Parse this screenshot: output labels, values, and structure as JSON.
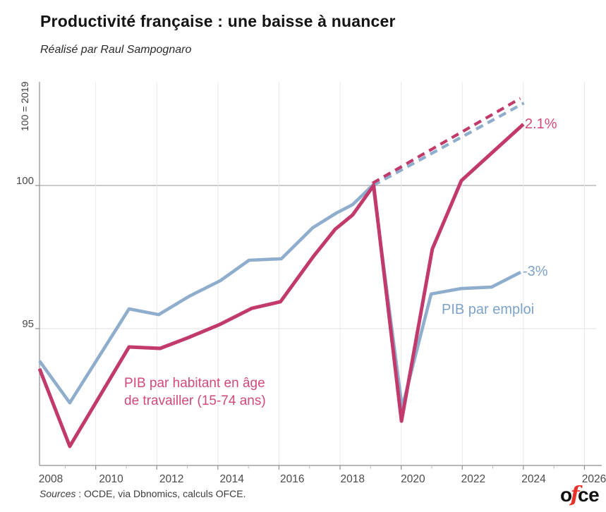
{
  "header": {
    "title": "Productivité française : une baisse à nuancer",
    "subtitle": "Réalisé par Raul Sampognaro"
  },
  "footer": {
    "sources_label": "Sources",
    "sources_text": " : OCDE, via Dbnomics, calculs OFCE.",
    "logo_o": "o",
    "logo_f": "f",
    "logo_ce": "ce"
  },
  "chart_data": {
    "type": "line",
    "title": "Productivité française : une baisse à nuancer",
    "y_axis_title": "100 = 2019",
    "x_ticks": [
      2008,
      2010,
      2012,
      2014,
      2016,
      2018,
      2020,
      2022,
      2024,
      2026
    ],
    "x_minor_ticks": [
      2009,
      2011,
      2013,
      2015,
      2017,
      2019,
      2021,
      2023,
      2025
    ],
    "y_ticks": [
      95,
      100
    ],
    "xlim": [
      2008.16,
      2026.4
    ],
    "ylim": [
      90.3,
      103.6
    ],
    "grid": true,
    "colors": {
      "blue": "#8fadcc",
      "pink": "#c23a6b",
      "blue_label": "#7ea3c8",
      "pink_label": "#d2497b"
    },
    "series": [
      {
        "name": "PIB par emploi",
        "color": "#8fadcc",
        "style": "solid",
        "end_label": "-3%",
        "points": [
          [
            2008.16,
            93.87
          ],
          [
            2009.15,
            92.41
          ],
          [
            2011.09,
            95.69
          ],
          [
            2012.06,
            95.49
          ],
          [
            2013.06,
            96.13
          ],
          [
            2014.07,
            96.67
          ],
          [
            2015.02,
            97.39
          ],
          [
            2016.08,
            97.44
          ],
          [
            2017.1,
            98.52
          ],
          [
            2017.88,
            99.04
          ],
          [
            2018.41,
            99.33
          ],
          [
            2019.08,
            100.02
          ],
          [
            2020.03,
            92.24
          ],
          [
            2020.98,
            96.21
          ],
          [
            2021.95,
            96.4
          ],
          [
            2022.96,
            96.45
          ],
          [
            2023.91,
            96.97
          ]
        ]
      },
      {
        "name": "PIB par habitant en âge de travailler (15-74 ans)",
        "color": "#c23a6b",
        "style": "solid",
        "end_label": "2.1%",
        "points": [
          [
            2008.16,
            93.6
          ],
          [
            2009.15,
            90.89
          ],
          [
            2011.09,
            94.36
          ],
          [
            2012.11,
            94.31
          ],
          [
            2013.06,
            94.7
          ],
          [
            2014.07,
            95.15
          ],
          [
            2015.11,
            95.71
          ],
          [
            2016.05,
            95.94
          ],
          [
            2017.14,
            97.54
          ],
          [
            2017.84,
            98.47
          ],
          [
            2018.41,
            98.97
          ],
          [
            2019.1,
            100.0
          ],
          [
            2020.01,
            91.77
          ],
          [
            2021.02,
            97.78
          ],
          [
            2021.97,
            100.17
          ],
          [
            2022.96,
            101.13
          ],
          [
            2024.0,
            102.14
          ]
        ]
      },
      {
        "name": "Tendance pré-2019 — PIB par emploi",
        "color": "#8fadcc",
        "style": "dashed",
        "end_label": "",
        "points": [
          [
            2019.08,
            100.0
          ],
          [
            2024.02,
            102.88
          ]
        ]
      },
      {
        "name": "Tendance pré-2019 — PIB par habitant en âge de travailler",
        "color": "#c23a6b",
        "style": "dashed",
        "end_label": "",
        "points": [
          [
            2019.06,
            100.08
          ],
          [
            2023.9,
            103.04
          ]
        ]
      }
    ],
    "annotations": {
      "pib_habitant_line1": "PIB par habitant en âge",
      "pib_habitant_line2": "de travailler (15-74 ans)"
    }
  }
}
